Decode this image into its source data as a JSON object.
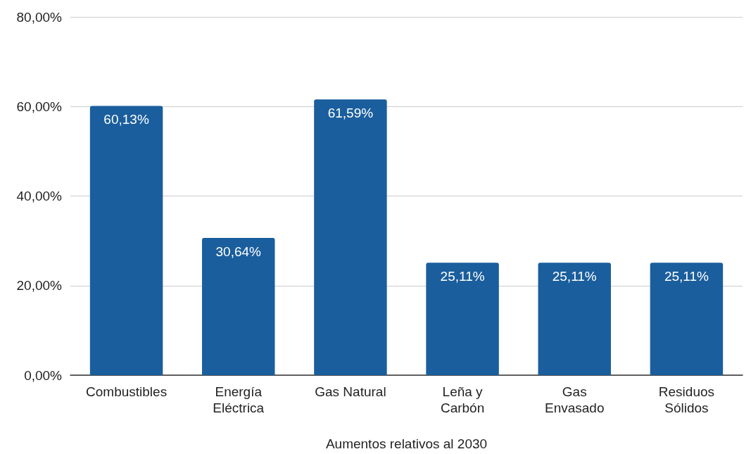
{
  "chart_data": {
    "type": "bar",
    "xlabel": "Aumentos relativos al 2030",
    "categories": [
      "Combustibles",
      "Energía\nEléctrica",
      "Gas Natural",
      "Leña y\nCarbón",
      "Gas\nEnvasado",
      "Residuos\nSólidos"
    ],
    "values": [
      60.13,
      30.64,
      61.59,
      25.11,
      25.11,
      25.11
    ],
    "value_labels": [
      "60,13%",
      "30,64%",
      "61,59%",
      "25,11%",
      "25,11%",
      "25,11%"
    ],
    "color": "#1a5e9d",
    "ylim": [
      0,
      80
    ],
    "yticks": [
      {
        "value": 0,
        "label": "0,00%"
      },
      {
        "value": 20,
        "label": "20,00%"
      },
      {
        "value": 40,
        "label": "40,00%"
      },
      {
        "value": 60,
        "label": "60,00%"
      },
      {
        "value": 80,
        "label": "80,00%"
      }
    ],
    "grid": "y"
  }
}
